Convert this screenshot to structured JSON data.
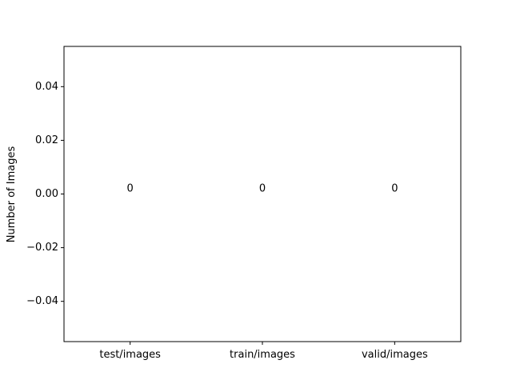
{
  "chart_data": {
    "type": "bar",
    "categories": [
      "test/images",
      "train/images",
      "valid/images"
    ],
    "values": [
      0,
      0,
      0
    ],
    "data_labels": [
      "0",
      "0",
      "0"
    ],
    "title": "",
    "xlabel": "",
    "ylabel": "Number of Images",
    "ylim": [
      -0.055,
      0.055
    ],
    "yticks": [
      -0.04,
      -0.02,
      0.0,
      0.02,
      0.04
    ],
    "ytick_labels": [
      "−0.04",
      "−0.02",
      "0.00",
      "0.02",
      "0.04"
    ],
    "grid": false,
    "legend": "none"
  }
}
